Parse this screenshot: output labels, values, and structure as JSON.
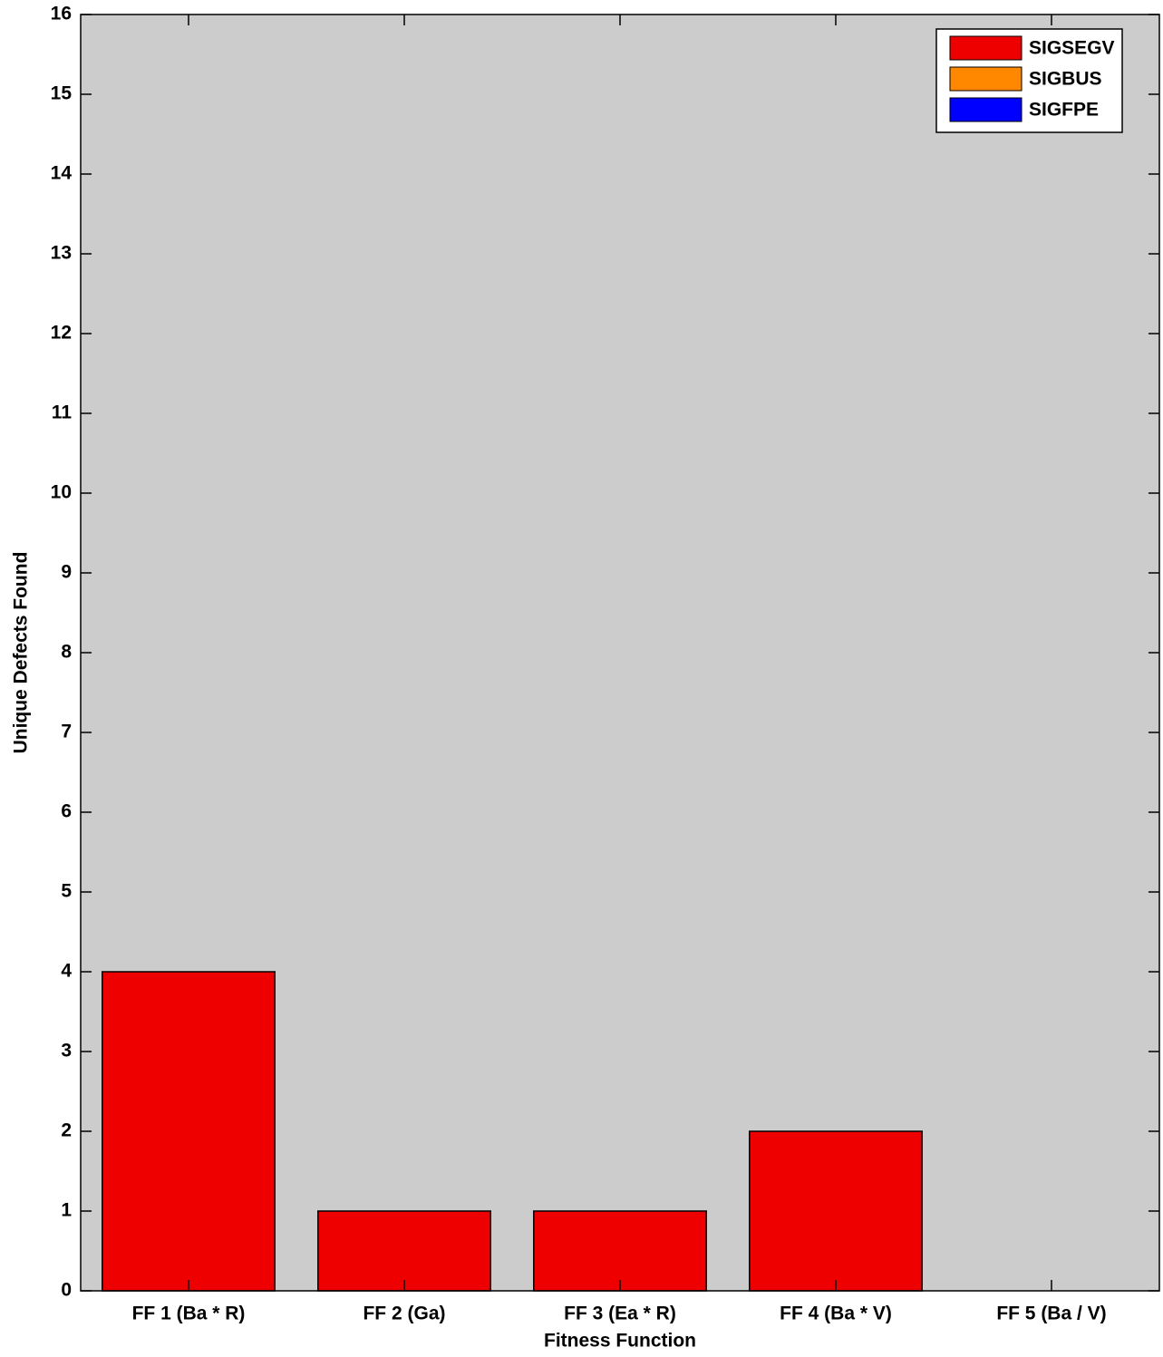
{
  "chart_data": {
    "type": "bar",
    "stacked": true,
    "xlabel": "Fitness Function",
    "ylabel": "Unique Defects Found",
    "categories": [
      "FF 1 (Ba * R)",
      "FF 2 (Ga)",
      "FF 3 (Ea * R)",
      "FF 4 (Ba * V)",
      "FF 5 (Ba / V)"
    ],
    "series": [
      {
        "name": "SIGSEGV",
        "color": "#ee0000",
        "values": [
          4,
          1,
          1,
          2,
          0
        ]
      },
      {
        "name": "SIGBUS",
        "color": "#ff8800",
        "values": [
          0,
          0,
          0,
          0,
          0
        ]
      },
      {
        "name": "SIGFPE",
        "color": "#0000ff",
        "values": [
          0,
          0,
          0,
          0,
          0
        ]
      }
    ],
    "ylim": [
      0,
      16
    ],
    "yticks": [
      0,
      1,
      2,
      3,
      4,
      5,
      6,
      7,
      8,
      9,
      10,
      11,
      12,
      13,
      14,
      15,
      16
    ],
    "grid": false,
    "legend": "upper right",
    "background": "#cccccc"
  }
}
